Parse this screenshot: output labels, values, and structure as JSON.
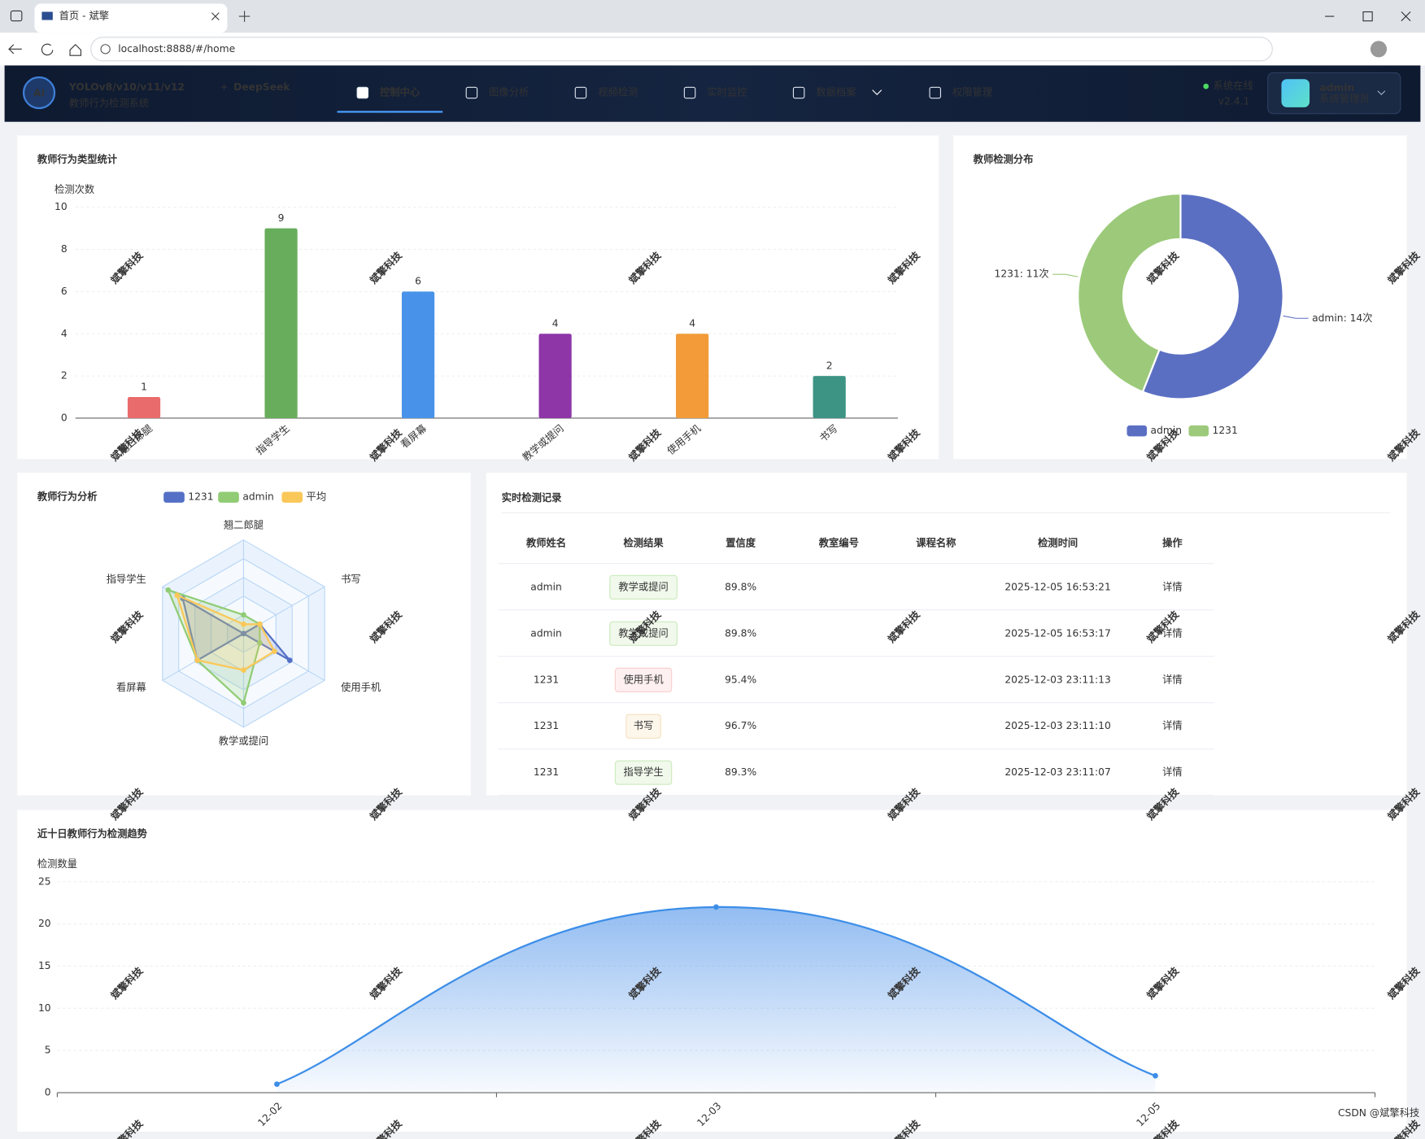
{
  "browser": {
    "tab_title": "首页 - 斌擎",
    "url": "localhost:8888/#/home"
  },
  "header": {
    "logo": "AI",
    "title_models": "YOLOv8/v10/v11/v12",
    "title_plus": "+",
    "title_llm": "DeepSeek",
    "subtitle": "教师行为检测系统",
    "status": "系统在线",
    "version": "v2.4.1",
    "user_name": "admin",
    "user_role": "系统管理员"
  },
  "nav": [
    {
      "label": "控制中心",
      "active": true
    },
    {
      "label": "图像分析"
    },
    {
      "label": "视频检测"
    },
    {
      "label": "实时监控"
    },
    {
      "label": "数据档案",
      "dropdown": true
    },
    {
      "label": "权限管理"
    }
  ],
  "chart_data": [
    {
      "type": "bar",
      "title": "教师行为类型统计",
      "y_label": "检测次数",
      "categories": [
        "翘二郎腿",
        "指导学生",
        "看屏幕",
        "教学或提问",
        "使用手机",
        "书写"
      ],
      "values": [
        1,
        9,
        6,
        4,
        4,
        2
      ],
      "colors": [
        "#e96b6b",
        "#67ad5b",
        "#4893e9",
        "#8e35a8",
        "#f29b38",
        "#3d9485"
      ],
      "ylim": [
        0,
        10
      ],
      "yticks": [
        0,
        2,
        4,
        6,
        8,
        10
      ],
      "grid": true
    },
    {
      "type": "pie",
      "title": "教师检测分布",
      "donut": true,
      "legend": "bottom",
      "categories": [
        "admin",
        "1231"
      ],
      "values": [
        14,
        11
      ],
      "value_labels": [
        "admin: 14次",
        "1231: 11次"
      ],
      "colors": [
        "#5b6fc2",
        "#9cca7a"
      ]
    },
    {
      "type": "radar",
      "title": "教师行为分析",
      "legend": "top",
      "indicators": [
        "翘二郎腿",
        "书写",
        "使用手机",
        "教学或提问",
        "看屏幕",
        "指导学生"
      ],
      "rlim": [
        0,
        10
      ],
      "series": [
        {
          "name": "1231",
          "color": "#5470c6",
          "values": [
            0,
            2,
            5.7,
            0,
            5.7,
            7.5
          ]
        },
        {
          "name": "admin",
          "color": "#91cc75",
          "values": [
            2,
            2,
            2,
            7.4,
            5.7,
            9.3
          ]
        },
        {
          "name": "平均",
          "color": "#fac858",
          "values": [
            1,
            2,
            3.8,
            3.9,
            5.7,
            8.2
          ]
        }
      ]
    },
    {
      "type": "line",
      "title": "近十日教师行为检测趋势",
      "y_label": "检测数量",
      "smooth": true,
      "area": true,
      "categories": [
        "12-02",
        "12-03",
        "12-05"
      ],
      "values": [
        1,
        22,
        2
      ],
      "color": "#3d8ee8",
      "ylim": [
        0,
        25
      ],
      "yticks": [
        0,
        5,
        10,
        15,
        20,
        25
      ],
      "grid": true
    }
  ],
  "table": {
    "title": "实时检测记录",
    "columns": [
      "教师姓名",
      "检测结果",
      "置信度",
      "教室编号",
      "课程名称",
      "检测时间",
      "操作"
    ],
    "rows": [
      {
        "name": "admin",
        "result": "教学或提问",
        "result_color": "#67c23a",
        "confidence": "89.8%",
        "time": "2025-12-05 16:53:21",
        "action": "详情"
      },
      {
        "name": "admin",
        "result": "教学或提问",
        "result_color": "#67c23a",
        "confidence": "89.8%",
        "time": "2025-12-05 16:53:17",
        "action": "详情"
      },
      {
        "name": "1231",
        "result": "使用手机",
        "result_color": "#f56c6c",
        "confidence": "95.4%",
        "time": "2025-12-03 23:11:13",
        "action": "详情"
      },
      {
        "name": "1231",
        "result": "书写",
        "result_color": "#e6a23c",
        "confidence": "96.7%",
        "time": "2025-12-03 23:11:10",
        "action": "详情"
      },
      {
        "name": "1231",
        "result": "指导学生",
        "result_color": "#67c23a",
        "confidence": "89.3%",
        "time": "2025-12-03 23:11:07",
        "action": "详情"
      }
    ]
  },
  "watermark": "斌擎科技",
  "credit": "CSDN @斌擎科技"
}
